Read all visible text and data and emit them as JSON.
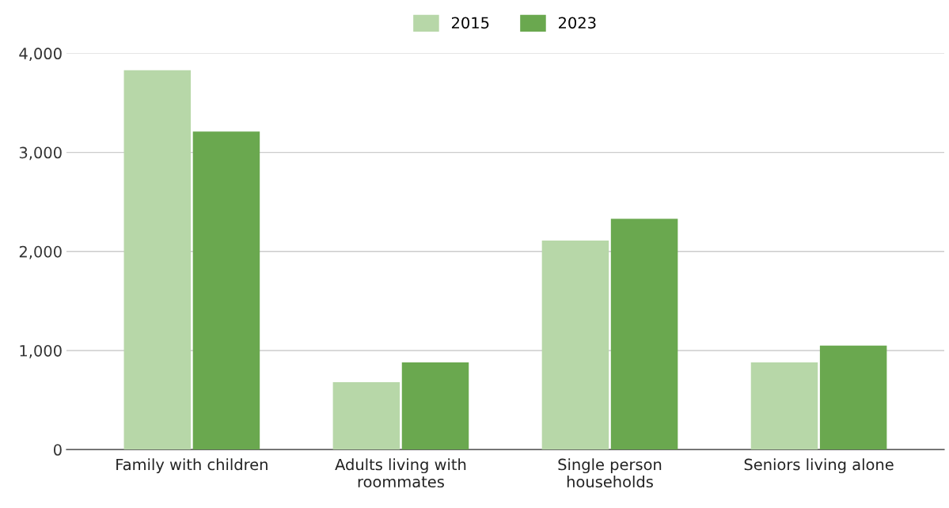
{
  "chart_data": {
    "type": "bar",
    "categories": [
      "Family with children",
      "Adults living with\nroommates",
      "Single person\nhouseholds",
      "Seniors living alone"
    ],
    "series": [
      {
        "name": "2015",
        "color": "#b7d7a8",
        "values": [
          3830,
          680,
          2110,
          880
        ]
      },
      {
        "name": "2023",
        "color": "#6aa84f",
        "values": [
          3210,
          880,
          2330,
          1050
        ]
      }
    ],
    "ylim": [
      0,
      4000
    ],
    "yticks": [
      {
        "value": 0,
        "label": "0"
      },
      {
        "value": 1000,
        "label": "1,000"
      },
      {
        "value": 2000,
        "label": "2,000"
      },
      {
        "value": 3000,
        "label": "3,000"
      },
      {
        "value": 4000,
        "label": "4,000"
      }
    ],
    "grid": "y",
    "legend": "top"
  }
}
